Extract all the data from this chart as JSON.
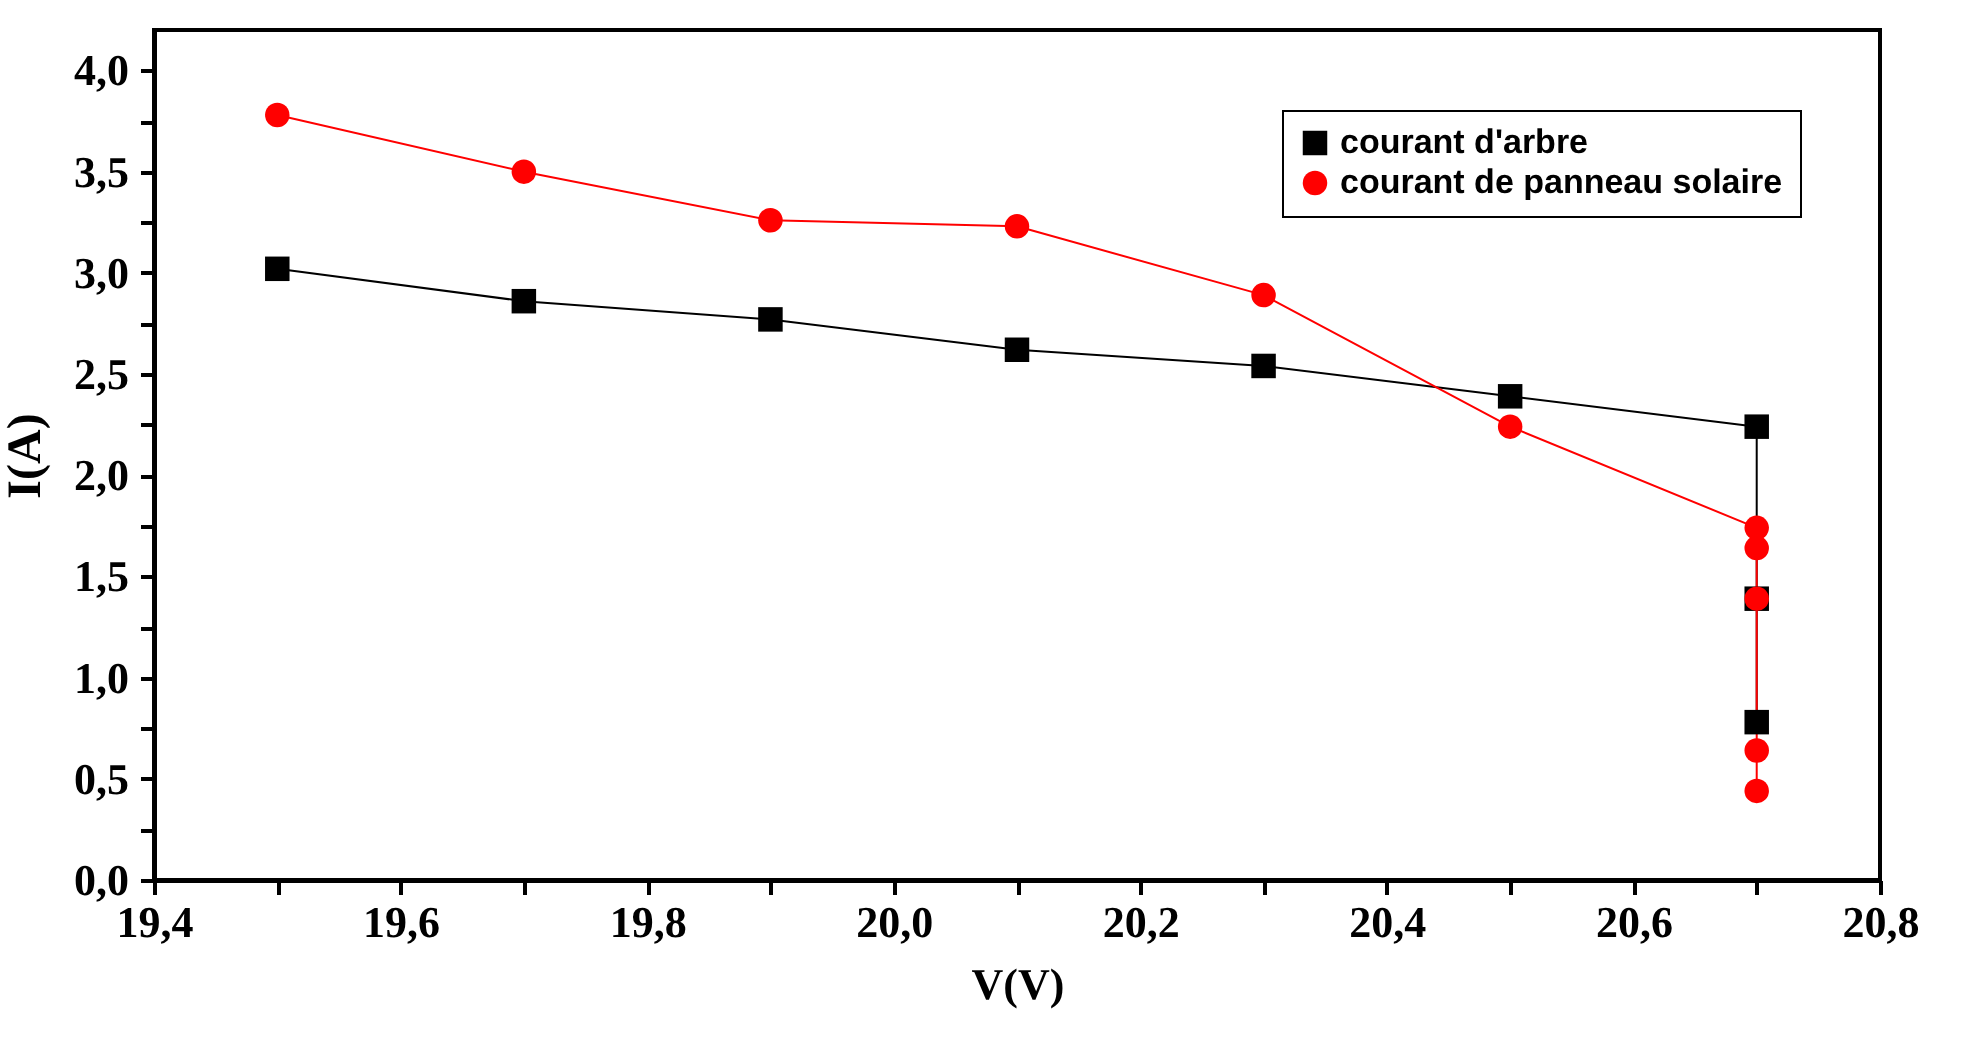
{
  "chart_data": {
    "type": "line",
    "xlabel": "V(V)",
    "ylabel": "I(A)",
    "xlim": [
      19.4,
      20.8
    ],
    "xticks": [
      {
        "value": 19.4,
        "label": "19,4"
      },
      {
        "value": 19.5,
        "label": null
      },
      {
        "value": 19.6,
        "label": "19,6"
      },
      {
        "value": 19.7,
        "label": null
      },
      {
        "value": 19.8,
        "label": "19,8"
      },
      {
        "value": 19.9,
        "label": null
      },
      {
        "value": 20.0,
        "label": "20,0"
      },
      {
        "value": 20.1,
        "label": null
      },
      {
        "value": 20.2,
        "label": "20,2"
      },
      {
        "value": 20.3,
        "label": null
      },
      {
        "value": 20.4,
        "label": "20,4"
      },
      {
        "value": 20.5,
        "label": null
      },
      {
        "value": 20.6,
        "label": "20,6"
      },
      {
        "value": 20.7,
        "label": null
      },
      {
        "value": 20.8,
        "label": "20,8"
      }
    ],
    "ylim": [
      0,
      4.2
    ],
    "yticks": [
      {
        "value": 0,
        "label": "0,0"
      },
      {
        "value": 0.25,
        "label": null
      },
      {
        "value": 0.5,
        "label": "0,5"
      },
      {
        "value": 0.75,
        "label": null
      },
      {
        "value": 1.0,
        "label": "1,0"
      },
      {
        "value": 1.25,
        "label": null
      },
      {
        "value": 1.5,
        "label": "1,5"
      },
      {
        "value": 1.75,
        "label": null
      },
      {
        "value": 2.0,
        "label": "2,0"
      },
      {
        "value": 2.25,
        "label": null
      },
      {
        "value": 2.5,
        "label": "2,5"
      },
      {
        "value": 2.75,
        "label": null
      },
      {
        "value": 3.0,
        "label": "3,0"
      },
      {
        "value": 3.25,
        "label": null
      },
      {
        "value": 3.5,
        "label": "3,5"
      },
      {
        "value": 3.75,
        "label": null
      },
      {
        "value": 4.0,
        "label": "4,0"
      }
    ],
    "legend": "top right",
    "grid": false,
    "series": [
      {
        "name": "courant d'arbre",
        "color": "#000000",
        "marker": "square",
        "x": [
          19.5,
          19.7,
          19.9,
          20.1,
          20.3,
          20.5,
          20.7,
          20.7,
          20.7
        ],
        "values": [
          3.02,
          2.86,
          2.77,
          2.62,
          2.54,
          2.39,
          2.24,
          1.39,
          0.78
        ]
      },
      {
        "name": "courant de panneau solaire",
        "color": "#ff0000",
        "marker": "circle",
        "x": [
          19.5,
          19.7,
          19.9,
          20.1,
          20.3,
          20.5,
          20.7,
          20.7,
          20.7,
          20.7,
          20.7
        ],
        "values": [
          3.78,
          3.5,
          3.26,
          3.23,
          2.89,
          2.24,
          1.74,
          1.64,
          1.39,
          0.64,
          0.44
        ]
      }
    ]
  }
}
